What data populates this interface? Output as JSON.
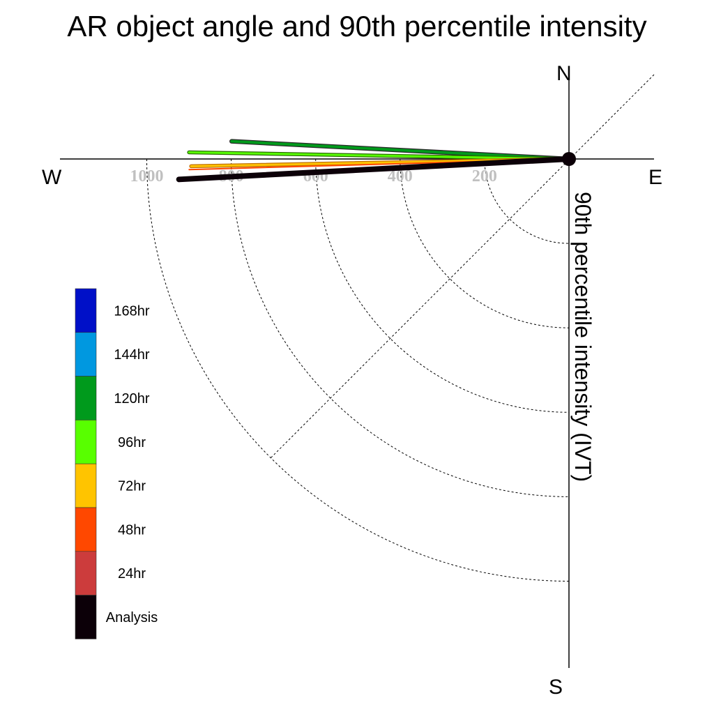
{
  "chart_data": {
    "type": "polar",
    "title": "AR object angle and 90th percentile intensity",
    "radial_label": "90th percentile intensity (IVT)",
    "compass": {
      "north": "N",
      "south": "S",
      "east": "E",
      "west": "W"
    },
    "radial_ticks": [
      200,
      400,
      600,
      800,
      1000
    ],
    "legend": [
      {
        "label": "168hr",
        "color": "#0010c8"
      },
      {
        "label": "144hr",
        "color": "#0098e0"
      },
      {
        "label": "120hr",
        "color": "#009a1c"
      },
      {
        "label": "96hr",
        "color": "#58ff00"
      },
      {
        "label": "72hr",
        "color": "#ffc400"
      },
      {
        "label": "48hr",
        "color": "#ff4800"
      },
      {
        "label": "24hr",
        "color": "#cc3c3c"
      },
      {
        "label": "Analysis",
        "color": "#0c0008"
      }
    ],
    "series": [
      {
        "name": "120hr",
        "angle_deg": 183.0,
        "intensity": 800,
        "color": "#009a1c",
        "outline": "#2a2a2a",
        "width": 4
      },
      {
        "name": "96hr",
        "angle_deg": 181.0,
        "intensity": 900,
        "color": "#58ff00",
        "outline": "#2a6a00",
        "width": 3
      },
      {
        "name": "72hr",
        "angle_deg": 178.9,
        "intensity": 895,
        "color": "#ffc400",
        "outline": "#c07000",
        "width": 3
      },
      {
        "name": "48hr",
        "angle_deg": 178.4,
        "intensity": 900,
        "color": "#ff4800",
        "outline": "#ff4800",
        "width": 2
      },
      {
        "name": "Analysis",
        "angle_deg": 177.0,
        "intensity": 925,
        "color": "#0c0008",
        "outline": "#0c0008",
        "width": 8
      }
    ]
  }
}
